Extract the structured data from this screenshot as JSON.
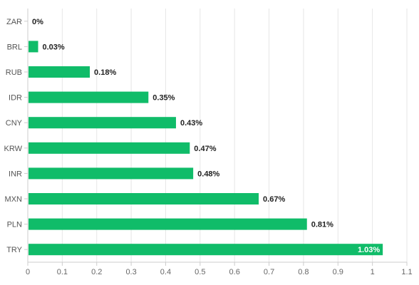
{
  "chart_data": {
    "type": "bar",
    "orientation": "horizontal",
    "categories": [
      "ZAR",
      "BRL",
      "RUB",
      "IDR",
      "CNY",
      "KRW",
      "INR",
      "MXN",
      "PLN",
      "TRY"
    ],
    "values": [
      0,
      0.03,
      0.18,
      0.35,
      0.43,
      0.47,
      0.48,
      0.67,
      0.81,
      1.03
    ],
    "value_labels": [
      "0%",
      "0.03%",
      "0.18%",
      "0.35%",
      "0.43%",
      "0.47%",
      "0.48%",
      "0.67%",
      "0.81%",
      "1.03%"
    ],
    "xticks": [
      "0",
      "0.1",
      "0.2",
      "0.3",
      "0.4",
      "0.5",
      "0.6",
      "0.7",
      "0.8",
      "0.9",
      "1",
      "1.1"
    ],
    "xlim": [
      0,
      1.1
    ],
    "grid": true,
    "legend": "none",
    "bar_color": "#10BC69",
    "title": "",
    "xlabel": "",
    "ylabel": ""
  }
}
